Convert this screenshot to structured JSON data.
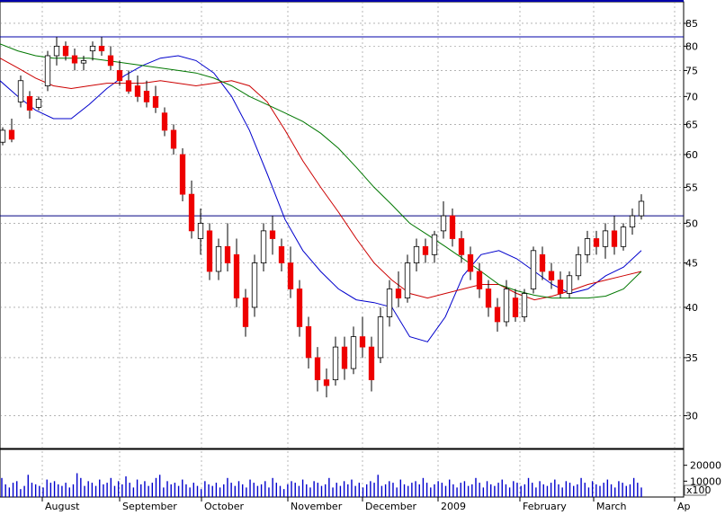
{
  "chart_data": {
    "type": "candlestick",
    "price_axis": {
      "scale": "log",
      "ylim": [
        27.5,
        90
      ],
      "ticks": [
        30,
        35,
        40,
        45,
        50,
        55,
        60,
        65,
        70,
        75,
        80,
        85
      ]
    },
    "volume_axis": {
      "ylim": [
        0,
        30000
      ],
      "ticks": [
        {
          "value": 20000,
          "label": "20000"
        },
        {
          "value": 10000,
          "label": "10000"
        }
      ],
      "multiplier_label": "x100"
    },
    "x_axis": {
      "labels": [
        "August",
        "September",
        "October",
        "November",
        "December",
        "2009",
        "February",
        "March",
        "Ap"
      ]
    },
    "horizontal_lines": [
      {
        "value": 82,
        "color": "#0000aa"
      },
      {
        "value": 51,
        "color": "#000080"
      }
    ],
    "moving_averages": [
      {
        "color": "#0000cc",
        "values": [
          73,
          70,
          67.5,
          66,
          66,
          68.5,
          71.5,
          74,
          76,
          77.5,
          78,
          77,
          74.5,
          70,
          64,
          57,
          50.5,
          46.5,
          44,
          42,
          40.8,
          40.5,
          40,
          37,
          36.5,
          39,
          43.5,
          46,
          46.5,
          45.5,
          44,
          42.5,
          41.5,
          42,
          43.5,
          44.5,
          46.5
        ]
      },
      {
        "color": "#cc0000",
        "values": [
          77.5,
          75.5,
          73.5,
          72,
          71.5,
          72,
          72.5,
          72.5,
          72.5,
          73,
          72.5,
          72,
          72.5,
          73,
          72,
          69,
          64,
          59,
          55,
          51.5,
          48,
          45,
          43,
          41.5,
          41,
          41.5,
          42,
          42.5,
          42.5,
          41.5,
          40.8,
          41.2,
          41.8,
          42.5,
          43,
          43.5,
          44
        ]
      },
      {
        "color": "#007700",
        "values": [
          80.5,
          79,
          78,
          77.5,
          77.5,
          77.5,
          77,
          76.5,
          76,
          75.5,
          75,
          74.5,
          73.5,
          72,
          70,
          68.5,
          67,
          65.5,
          63.5,
          61,
          58,
          55,
          52.5,
          50,
          48.5,
          47,
          45.5,
          44,
          42.5,
          41.8,
          41.3,
          41,
          41,
          41,
          41.2,
          42,
          44
        ]
      }
    ],
    "candles": [
      [
        62,
        64.5,
        61.5,
        64
      ],
      [
        64,
        66,
        62,
        62.5
      ],
      [
        69,
        74,
        68,
        73
      ],
      [
        70,
        71,
        66,
        67.5
      ],
      [
        68,
        70,
        67.5,
        69.5
      ],
      [
        72,
        79,
        71,
        78
      ],
      [
        78,
        82,
        76,
        80
      ],
      [
        80,
        81,
        77,
        78
      ],
      [
        78,
        79.5,
        75,
        76.5
      ],
      [
        76.5,
        78,
        75,
        77
      ],
      [
        79,
        81,
        77,
        80
      ],
      [
        80,
        82,
        78,
        79
      ],
      [
        78,
        80,
        75,
        76
      ],
      [
        75,
        77,
        72,
        73
      ],
      [
        73,
        75,
        70.5,
        71
      ],
      [
        72,
        74,
        69,
        70
      ],
      [
        71,
        73,
        68,
        69
      ],
      [
        70,
        72,
        67,
        68
      ],
      [
        67,
        68,
        63,
        64
      ],
      [
        64,
        65,
        60,
        61
      ],
      [
        60,
        61,
        53,
        54
      ],
      [
        54,
        56,
        48,
        49
      ],
      [
        48,
        52,
        46,
        50
      ],
      [
        49,
        50,
        43,
        44
      ],
      [
        44,
        48,
        43,
        47
      ],
      [
        47,
        50,
        44,
        45
      ],
      [
        46,
        48,
        40,
        41
      ],
      [
        41,
        42,
        37,
        38
      ],
      [
        40,
        46,
        39,
        45
      ],
      [
        45,
        50,
        44,
        49
      ],
      [
        49,
        51,
        46,
        48
      ],
      [
        47,
        48,
        44,
        45
      ],
      [
        45,
        47,
        41,
        42
      ],
      [
        42,
        43,
        37,
        38
      ],
      [
        38,
        39,
        34,
        35
      ],
      [
        35,
        36,
        32,
        33
      ],
      [
        33,
        34,
        31.5,
        32.5
      ],
      [
        33,
        37,
        32.5,
        36
      ],
      [
        36,
        37,
        33,
        34
      ],
      [
        34,
        38,
        33.5,
        37
      ],
      [
        37,
        39,
        35,
        36
      ],
      [
        36,
        37,
        32,
        33
      ],
      [
        35,
        40,
        34.5,
        39
      ],
      [
        39,
        43,
        38,
        42
      ],
      [
        42,
        44,
        40,
        41
      ],
      [
        41,
        46,
        40.5,
        45
      ],
      [
        45,
        48,
        44,
        47
      ],
      [
        47,
        48,
        45,
        46
      ],
      [
        46,
        49,
        45,
        48.5
      ],
      [
        49,
        53,
        48,
        51
      ],
      [
        51,
        52,
        47,
        48
      ],
      [
        48,
        49,
        45,
        46
      ],
      [
        46,
        47,
        43,
        44
      ],
      [
        44,
        45,
        41,
        42
      ],
      [
        42,
        43,
        39,
        40
      ],
      [
        40,
        41,
        37.5,
        38.5
      ],
      [
        38.5,
        43,
        38,
        42
      ],
      [
        41,
        42,
        38.5,
        39
      ],
      [
        39,
        42,
        38.5,
        41.5
      ],
      [
        42,
        47,
        41.5,
        46.5
      ],
      [
        46,
        47,
        43,
        44
      ],
      [
        44,
        45,
        42,
        43
      ],
      [
        43,
        44,
        41,
        41.5
      ],
      [
        41.5,
        44,
        41,
        43.5
      ],
      [
        43.5,
        47,
        43,
        46
      ],
      [
        46,
        49,
        45,
        48
      ],
      [
        48,
        49,
        46,
        47
      ],
      [
        47,
        50,
        45.5,
        49
      ],
      [
        49,
        51,
        46,
        47
      ],
      [
        47,
        50,
        46.5,
        49.5
      ],
      [
        49.5,
        52,
        48.5,
        51
      ],
      [
        51,
        54,
        50.5,
        53
      ]
    ],
    "volume": [
      12,
      8,
      6,
      9,
      10,
      5,
      7,
      14,
      9,
      8,
      7,
      6,
      11,
      9,
      10,
      8,
      7,
      9,
      6,
      8,
      15,
      12,
      7,
      10,
      9,
      7,
      11,
      8,
      9,
      12,
      7,
      10,
      8,
      13,
      9,
      6,
      11,
      8,
      10,
      7,
      9,
      12,
      14,
      6,
      10,
      8,
      9,
      7,
      11,
      8,
      6,
      9,
      7,
      5,
      10,
      8,
      7,
      9,
      6,
      8,
      12,
      9,
      7,
      10,
      8,
      6,
      11,
      9,
      7,
      8,
      10,
      6,
      12,
      9,
      7,
      5,
      8,
      10,
      9,
      7,
      11,
      8,
      6,
      10,
      9,
      7,
      8,
      12,
      6,
      9,
      7,
      10,
      8,
      11,
      7,
      9,
      6,
      8,
      10,
      9,
      14,
      7,
      8,
      10,
      9,
      6,
      11,
      8,
      7,
      9,
      10,
      8,
      12,
      9,
      6,
      8,
      10,
      9,
      7,
      11,
      8,
      6,
      9,
      10,
      7,
      8,
      12,
      9,
      6,
      10,
      8,
      7,
      9,
      11,
      8,
      6,
      10,
      9,
      7,
      8,
      12,
      9,
      6,
      10,
      8,
      7,
      9,
      11,
      8,
      6,
      10,
      9,
      7,
      8,
      12,
      9,
      6,
      10,
      8,
      7,
      9,
      11,
      8,
      6,
      10,
      9,
      7,
      8,
      12,
      9,
      6
    ]
  }
}
